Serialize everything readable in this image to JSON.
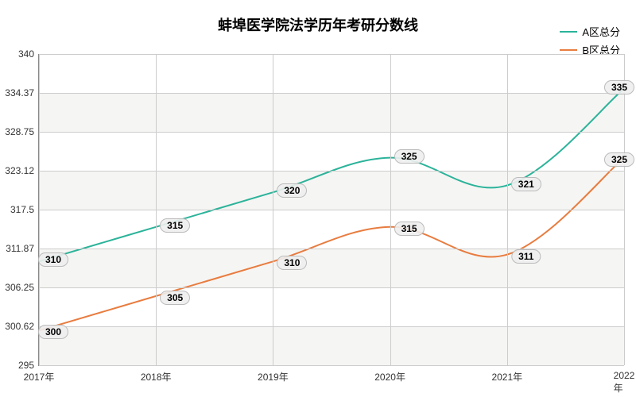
{
  "chart": {
    "type": "line",
    "title": "蚌埠医学院法学历年考研分数线",
    "title_fontsize": 18,
    "background_color": "#ffffff",
    "plot_bg_stripe_a": "#f5f5f3",
    "plot_bg_stripe_b": "#ffffff",
    "grid_color": "#cccccc",
    "axis_color": "#888888",
    "label_fontsize": 12,
    "x_labels": [
      "2017年",
      "2018年",
      "2019年",
      "2020年",
      "2021年",
      "2022年"
    ],
    "y_labels": [
      "295",
      "300.62",
      "306.25",
      "311.87",
      "317.5",
      "323.12",
      "328.75",
      "334.37",
      "340"
    ],
    "ylim": [
      295,
      340
    ],
    "series": [
      {
        "name": "A区总分",
        "color": "#2bb39a",
        "line_width": 2,
        "values": [
          310,
          315,
          320,
          325,
          321,
          335
        ]
      },
      {
        "name": "B区总分",
        "color": "#e87c3f",
        "line_width": 2,
        "values": [
          300,
          305,
          310,
          315,
          311,
          325
        ]
      }
    ],
    "label_pill_bg": "rgba(238,238,238,0.9)",
    "label_pill_border": "#bbbbbb"
  }
}
